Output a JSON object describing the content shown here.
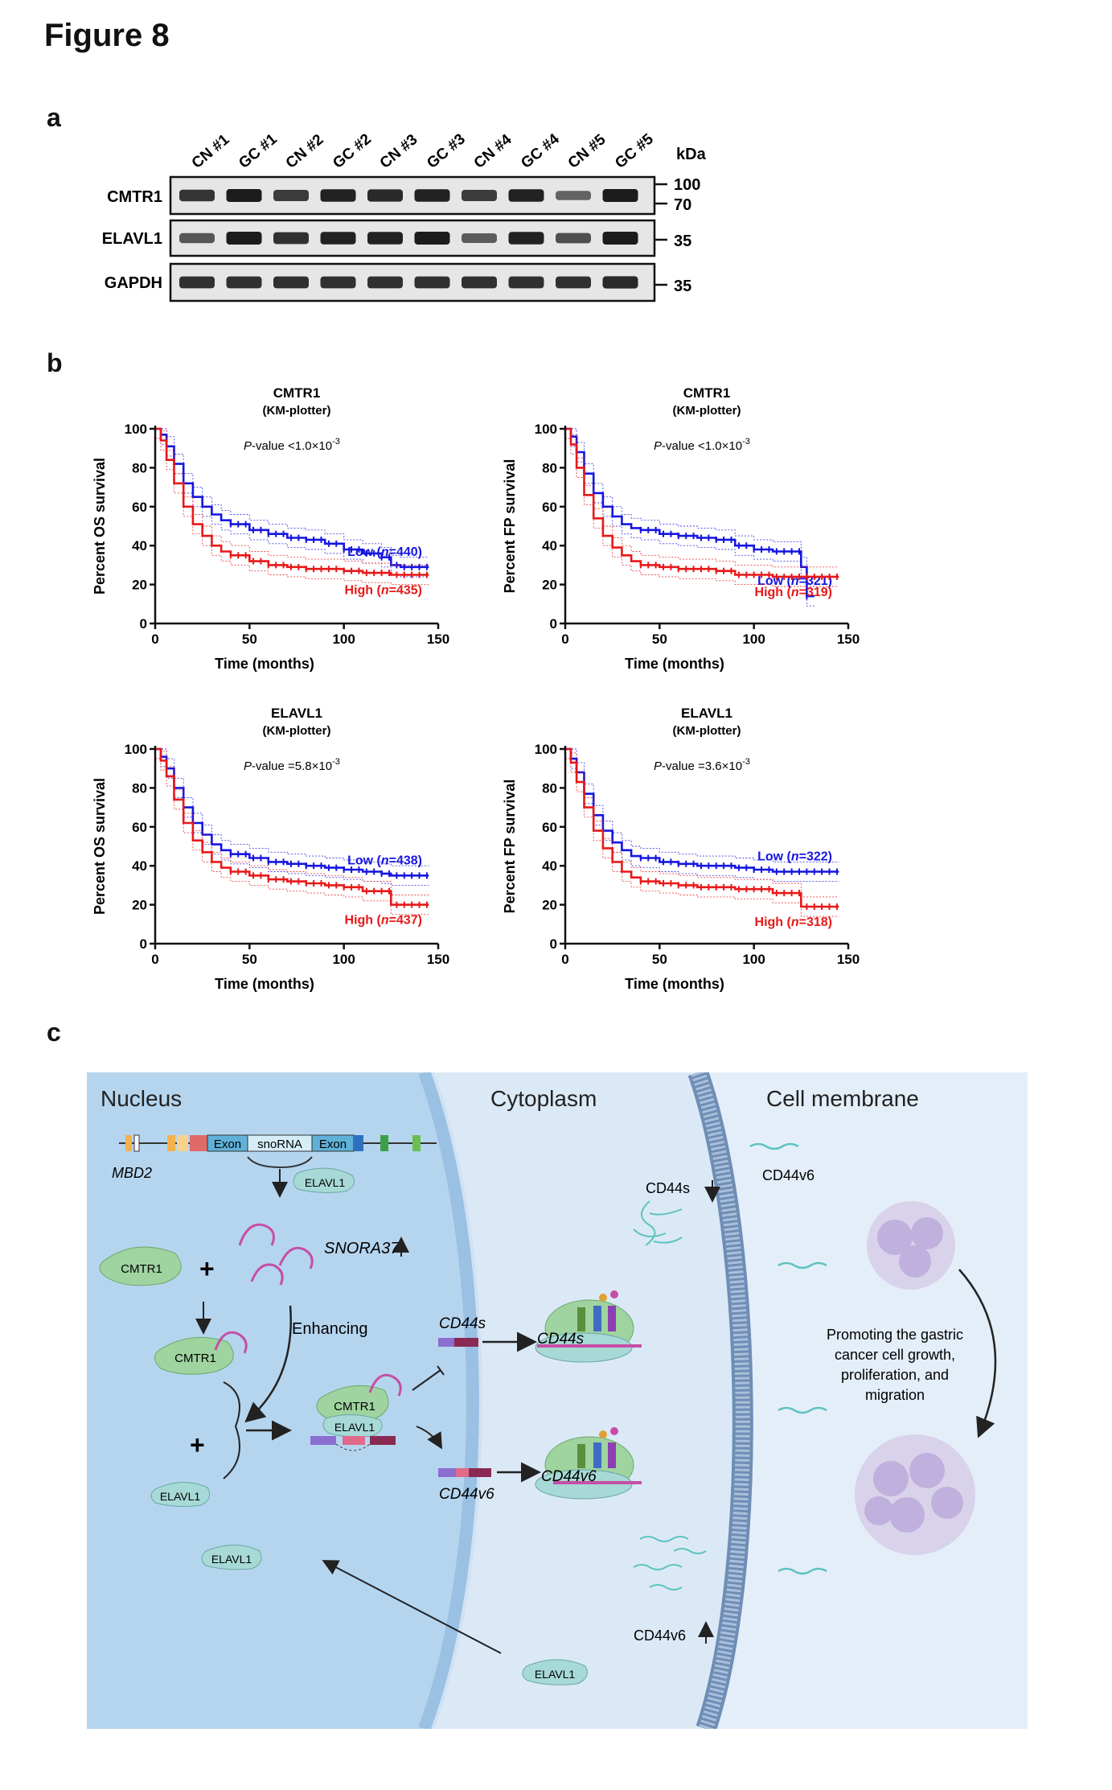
{
  "figure_title": "Figure 8",
  "panels": {
    "a": {
      "letter": "a",
      "lanes": [
        "CN #1",
        "GC #1",
        "CN #2",
        "GC #2",
        "CN #3",
        "GC #3",
        "CN #4",
        "GC #4",
        "CN #5",
        "GC #5"
      ],
      "kda_label": "kDa",
      "blots": [
        {
          "name": "CMTR1",
          "markers": [
            "100",
            "70"
          ],
          "band_intensity": [
            0.8,
            1.0,
            0.75,
            0.95,
            0.9,
            0.95,
            0.75,
            0.95,
            0.45,
            1.0
          ]
        },
        {
          "name": "ELAVL1",
          "markers": [
            "35"
          ],
          "band_intensity": [
            0.55,
            1.0,
            0.85,
            0.95,
            0.95,
            1.0,
            0.5,
            0.95,
            0.6,
            1.0
          ]
        },
        {
          "name": "GAPDH",
          "markers": [
            "35"
          ],
          "band_intensity": [
            0.85,
            0.85,
            0.85,
            0.85,
            0.85,
            0.85,
            0.85,
            0.85,
            0.85,
            0.9
          ]
        }
      ]
    },
    "b": {
      "letter": "b",
      "plot_colors": {
        "low": "#1515e0",
        "high": "#e81818"
      }
    },
    "c": {
      "letter": "c",
      "regions": [
        "Nucleus",
        "Cytoplasm",
        "Cell membrane"
      ],
      "gene_labels": {
        "exon1": "Exon",
        "snorna": "snoRNA",
        "exon2": "Exon",
        "gene": "MBD2"
      },
      "labels": {
        "elavl1": "ELAVL1",
        "cmtr1": "CMTR1",
        "snora37": "SNORA37",
        "enhancing": "Enhancing",
        "cd44s": "CD44s",
        "cd44v6": "CD44v6",
        "plus": "+",
        "cd44s_down": "CD44s",
        "cd44v6_top": "CD44v6",
        "cd44v6_up": "CD44v6",
        "promoting": [
          "Promoting the gastric",
          "cancer cell growth,",
          "proliferation, and",
          "migration"
        ]
      },
      "colors": {
        "nucleus": "#b5d5ef",
        "cytoplasm": "#dbe9f6",
        "membrane_side": "#e4eef9",
        "protein_green": "#9fd4a0",
        "elavl": "#a7d9d6",
        "snorna": "#c64ea7"
      }
    }
  },
  "chart_data": [
    {
      "type": "line",
      "title": "CMTR1",
      "subtitle": "(KM-plotter)",
      "p_value_prefix": "P",
      "p_value_text": "-value <1.0×10",
      "p_value_exp": "-3",
      "xlabel": "Time (months)",
      "ylabel": "Percent OS survival",
      "xlim": [
        0,
        150
      ],
      "ylim": [
        0,
        100
      ],
      "xticks": [
        0,
        50,
        100,
        150
      ],
      "yticks": [
        0,
        20,
        40,
        60,
        80,
        100
      ],
      "series": [
        {
          "name": "Low (n=440)",
          "label_pre": "Low (",
          "label_n": "n",
          "label_post": "=440)",
          "color": "#1515e0",
          "x": [
            0,
            3,
            6,
            10,
            15,
            20,
            25,
            30,
            35,
            40,
            50,
            60,
            70,
            80,
            90,
            100,
            110,
            120,
            125,
            130,
            140,
            145
          ],
          "y": [
            100,
            97,
            91,
            82,
            72,
            65,
            60,
            56,
            53,
            51,
            48,
            46,
            44,
            43,
            41,
            38,
            36,
            34,
            30,
            29,
            29,
            29
          ]
        },
        {
          "name": "High (n=435)",
          "label_pre": "High (",
          "label_n": "n",
          "label_post": "=435)",
          "color": "#e81818",
          "x": [
            0,
            3,
            6,
            10,
            15,
            20,
            25,
            30,
            35,
            40,
            50,
            60,
            70,
            80,
            90,
            100,
            110,
            120,
            125,
            130,
            140,
            145
          ],
          "y": [
            100,
            94,
            84,
            72,
            60,
            51,
            45,
            40,
            37,
            35,
            32,
            30,
            29,
            28,
            28,
            27,
            26,
            26,
            25,
            25,
            25,
            25
          ]
        }
      ]
    },
    {
      "type": "line",
      "title": "CMTR1",
      "subtitle": "(KM-plotter)",
      "p_value_prefix": "P",
      "p_value_text": "-value <1.0×10",
      "p_value_exp": "-3",
      "xlabel": "Time (months)",
      "ylabel": "Percent FP survival",
      "xlim": [
        0,
        150
      ],
      "ylim": [
        0,
        100
      ],
      "xticks": [
        0,
        50,
        100,
        150
      ],
      "yticks": [
        0,
        20,
        40,
        60,
        80,
        100
      ],
      "series": [
        {
          "name": "Low (n=321)",
          "label_pre": "Low (",
          "label_n": "n",
          "label_post": "=321)",
          "color": "#1515e0",
          "x": [
            0,
            3,
            6,
            10,
            15,
            20,
            25,
            30,
            35,
            40,
            50,
            60,
            70,
            80,
            90,
            100,
            110,
            120,
            124,
            125,
            128,
            132
          ],
          "y": [
            100,
            96,
            88,
            77,
            67,
            60,
            55,
            51,
            49,
            48,
            46,
            45,
            44,
            43,
            40,
            38,
            37,
            37,
            37,
            29,
            14,
            14
          ]
        },
        {
          "name": "High (n=319)",
          "label_pre": "High (",
          "label_n": "n",
          "label_post": "=319)",
          "color": "#e81818",
          "x": [
            0,
            3,
            6,
            10,
            15,
            20,
            25,
            30,
            35,
            40,
            50,
            60,
            70,
            80,
            90,
            100,
            110,
            120,
            124,
            125,
            140,
            145
          ],
          "y": [
            100,
            92,
            80,
            66,
            54,
            45,
            39,
            35,
            32,
            30,
            29,
            28,
            28,
            27,
            25,
            25,
            24,
            24,
            24,
            24,
            24,
            24
          ]
        }
      ]
    },
    {
      "type": "line",
      "title": "ELAVL1",
      "subtitle": "(KM-plotter)",
      "p_value_prefix": "P",
      "p_value_text": "-value =5.8×10",
      "p_value_exp": "-3",
      "xlabel": "Time (months)",
      "ylabel": "Percent OS survival",
      "xlim": [
        0,
        150
      ],
      "ylim": [
        0,
        100
      ],
      "xticks": [
        0,
        50,
        100,
        150
      ],
      "yticks": [
        0,
        20,
        40,
        60,
        80,
        100
      ],
      "series": [
        {
          "name": "Low (n=438)",
          "label_pre": "Low (",
          "label_n": "n",
          "label_post": "=438)",
          "color": "#1515e0",
          "x": [
            0,
            3,
            6,
            10,
            15,
            20,
            25,
            30,
            35,
            40,
            50,
            60,
            70,
            80,
            90,
            100,
            110,
            120,
            125,
            130,
            140,
            145
          ],
          "y": [
            100,
            96,
            90,
            80,
            70,
            62,
            56,
            51,
            48,
            46,
            44,
            42,
            41,
            40,
            39,
            38,
            37,
            36,
            35,
            35,
            35,
            35
          ]
        },
        {
          "name": "High (n=437)",
          "label_pre": "High (",
          "label_n": "n",
          "label_post": "=437)",
          "color": "#e81818",
          "x": [
            0,
            3,
            6,
            10,
            15,
            20,
            25,
            30,
            35,
            40,
            50,
            60,
            70,
            80,
            90,
            100,
            110,
            120,
            125,
            130,
            140,
            145
          ],
          "y": [
            100,
            94,
            86,
            74,
            62,
            53,
            47,
            42,
            39,
            37,
            35,
            33,
            32,
            31,
            30,
            29,
            27,
            27,
            20,
            20,
            20,
            20
          ]
        }
      ]
    },
    {
      "type": "line",
      "title": "ELAVL1",
      "subtitle": "(KM-plotter)",
      "p_value_prefix": "P",
      "p_value_text": "-value =3.6×10",
      "p_value_exp": "-3",
      "xlabel": "Time (months)",
      "ylabel": "Percent FP survival",
      "xlim": [
        0,
        150
      ],
      "ylim": [
        0,
        100
      ],
      "xticks": [
        0,
        50,
        100,
        150
      ],
      "yticks": [
        0,
        20,
        40,
        60,
        80,
        100
      ],
      "series": [
        {
          "name": "Low (n=322)",
          "label_pre": "Low (",
          "label_n": "n",
          "label_post": "=322)",
          "color": "#1515e0",
          "x": [
            0,
            3,
            6,
            10,
            15,
            20,
            25,
            30,
            35,
            40,
            50,
            60,
            70,
            80,
            90,
            100,
            110,
            120,
            125,
            130,
            140,
            145
          ],
          "y": [
            100,
            95,
            88,
            77,
            66,
            58,
            52,
            48,
            45,
            44,
            42,
            41,
            40,
            40,
            39,
            38,
            37,
            37,
            37,
            37,
            37,
            37
          ]
        },
        {
          "name": "High (n=318)",
          "label_pre": "High (",
          "label_n": "n",
          "label_post": "=318)",
          "color": "#e81818",
          "x": [
            0,
            3,
            6,
            10,
            15,
            20,
            25,
            30,
            35,
            40,
            50,
            60,
            70,
            80,
            90,
            100,
            110,
            120,
            125,
            130,
            140,
            145
          ],
          "y": [
            100,
            93,
            83,
            70,
            58,
            49,
            42,
            37,
            34,
            32,
            31,
            30,
            29,
            29,
            28,
            28,
            26,
            26,
            19,
            19,
            19,
            19
          ]
        }
      ]
    }
  ]
}
